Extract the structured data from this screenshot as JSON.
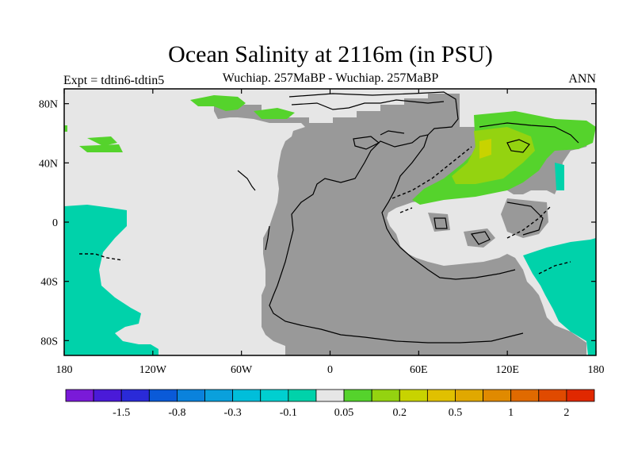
{
  "title": "Ocean Salinity at 2116m (in PSU)",
  "subtitle": "Wuchiap. 257MaBP - Wuchiap. 257MaBP",
  "experiment": "Expt = tdtin6-tdtin5",
  "season": "ANN",
  "map": {
    "projection": "cylindrical equidistant",
    "lon_range": [
      -180,
      180
    ],
    "lat_range": [
      -90,
      90
    ],
    "x_ticks": [
      {
        "value": -180,
        "label": "180"
      },
      {
        "value": -120,
        "label": "120W"
      },
      {
        "value": -60,
        "label": "60W"
      },
      {
        "value": 0,
        "label": "0"
      },
      {
        "value": 60,
        "label": "60E"
      },
      {
        "value": 120,
        "label": "120E"
      },
      {
        "value": 180,
        "label": "180"
      }
    ],
    "y_ticks": [
      {
        "value": 80,
        "label": "80N"
      },
      {
        "value": 40,
        "label": "40N"
      },
      {
        "value": 0,
        "label": "0"
      },
      {
        "value": -40,
        "label": "40S"
      },
      {
        "value": -80,
        "label": "80S"
      }
    ],
    "colors": {
      "land": "#999999",
      "ocean_near_zero": "#e6e6e6",
      "negative_anomaly": "#00d2aa",
      "positive_weak": "#55d32c",
      "positive_mid": "#94d310",
      "positive_strong": "#c8d300"
    }
  },
  "colorbar": {
    "colors": [
      "#7a1ad8",
      "#4a1ad8",
      "#2a2ad8",
      "#0a5ad8",
      "#0a82dc",
      "#0aa0dc",
      "#00beda",
      "#00cfd0",
      "#00d2aa",
      "#e6e6e6",
      "#55d32c",
      "#94d310",
      "#c8d300",
      "#e0c000",
      "#e0a800",
      "#e08a00",
      "#e06a00",
      "#e04a00",
      "#e02800"
    ],
    "labels": [
      "-1.5",
      "-0.8",
      "-0.3",
      "-0.1",
      "0.05",
      "0.2",
      "0.5",
      "1",
      "2"
    ]
  }
}
